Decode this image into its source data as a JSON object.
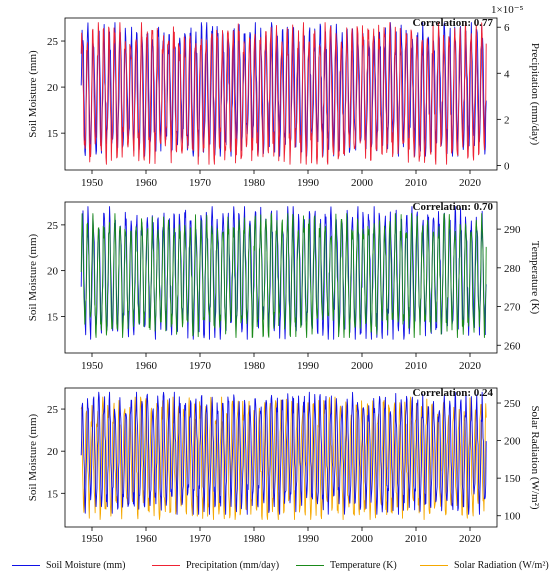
{
  "chart_data": [
    {
      "type": "line",
      "xlim": [
        1945,
        2025
      ],
      "xticks": [
        "1950",
        "1960",
        "1970",
        "1980",
        "1990",
        "2000",
        "2010",
        "2020"
      ],
      "ylabel": "Soil Moisture (mm)",
      "ylim": [
        11,
        27.5
      ],
      "yticks": [
        "15",
        "20",
        "25"
      ],
      "y2label": "Precipitation (mm/day)",
      "y2lim": [
        -0.2,
        6.4
      ],
      "y2ticks": [
        "0",
        "2",
        "4",
        "6"
      ],
      "y2_multiplier": "1×10⁻⁵",
      "annotation": "Correlation: 0.77",
      "series": [
        {
          "key": "soil",
          "axis": "left",
          "min": 12.5,
          "max": 27,
          "phase": 0.0,
          "x_start": 1948,
          "x_end": 2023
        },
        {
          "key": "precip",
          "axis": "right",
          "min": 0.05,
          "max": 6.2,
          "phase": 0.1,
          "x_start": 1948,
          "x_end": 2023
        }
      ]
    },
    {
      "type": "line",
      "xlim": [
        1945,
        2025
      ],
      "xticks": [
        "1950",
        "1960",
        "1970",
        "1980",
        "1990",
        "2000",
        "2010",
        "2020"
      ],
      "ylabel": "Soil Moisture (mm)",
      "ylim": [
        11,
        27.5
      ],
      "yticks": [
        "15",
        "20",
        "25"
      ],
      "y2label": "Temperature (K)",
      "y2lim": [
        258,
        297
      ],
      "y2ticks": [
        "260",
        "270",
        "280",
        "290"
      ],
      "annotation": "Correlation: 0.70",
      "series": [
        {
          "key": "soil",
          "axis": "left",
          "min": 12.5,
          "max": 27,
          "phase": 0.0,
          "x_start": 1948,
          "x_end": 2023
        },
        {
          "key": "temp",
          "axis": "right",
          "min": 262,
          "max": 294,
          "phase": 0.05,
          "x_start": 1948,
          "x_end": 2023
        }
      ]
    },
    {
      "type": "line",
      "xlim": [
        1945,
        2025
      ],
      "xticks": [
        "1950",
        "1960",
        "1970",
        "1980",
        "1990",
        "2000",
        "2010",
        "2020"
      ],
      "ylabel": "Soil Moisture (mm)",
      "ylim": [
        11,
        27.5
      ],
      "yticks": [
        "15",
        "20",
        "25"
      ],
      "y2label": "Solar Radiation (W/m²)",
      "y2lim": [
        85,
        270
      ],
      "y2ticks": [
        "100",
        "150",
        "200",
        "250"
      ],
      "annotation": "Correlation: 0.24",
      "series": [
        {
          "key": "solar",
          "axis": "right",
          "min": 95,
          "max": 258,
          "phase": 0.25,
          "x_start": 1948,
          "x_end": 2023
        },
        {
          "key": "soil",
          "axis": "left",
          "min": 12.5,
          "max": 27,
          "phase": 0.0,
          "x_start": 1948,
          "x_end": 2023
        }
      ]
    }
  ],
  "legend": [
    {
      "key": "soil",
      "label": "Soil Moisture (mm)",
      "color": "#1010e6"
    },
    {
      "key": "precip",
      "label": "Precipitation (mm/day)",
      "color": "#ee2233"
    },
    {
      "key": "temp",
      "label": "Temperature (K)",
      "color": "#1a8a1a"
    },
    {
      "key": "solar",
      "label": "Solar Radiation (W/m²)",
      "color": "#f5a800"
    }
  ]
}
